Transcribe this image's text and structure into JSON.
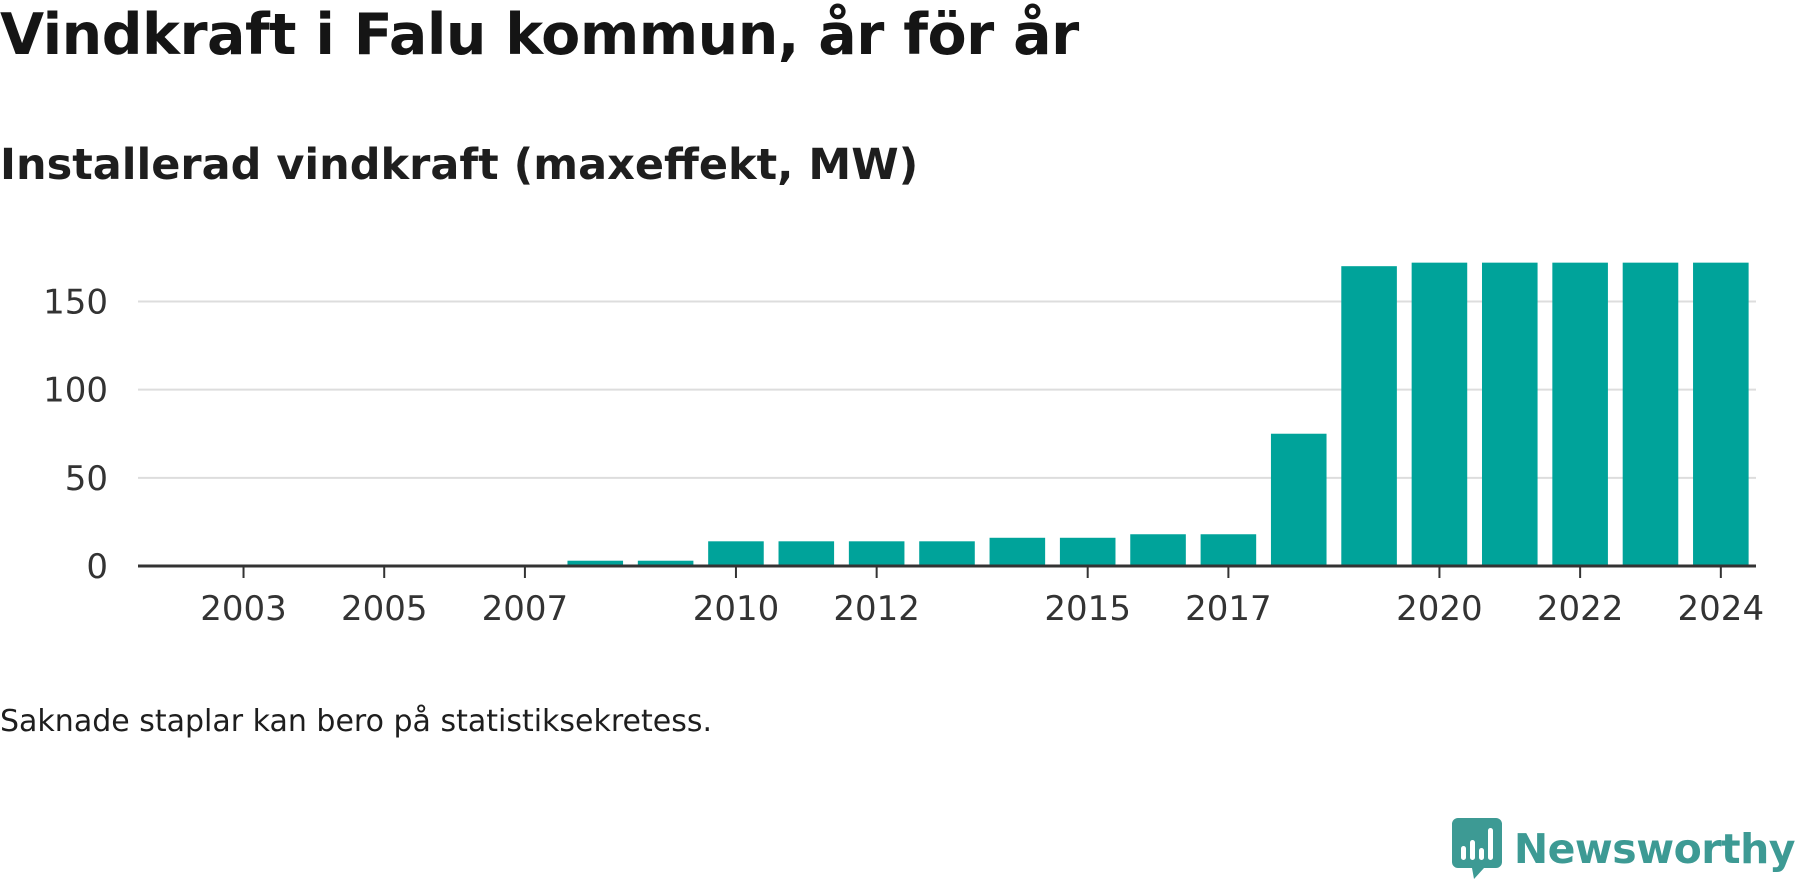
{
  "header": {
    "title": "Vindkraft i Falu kommun, år för år",
    "subtitle": "Installerad vindkraft (maxeffekt, MW)"
  },
  "footer": {
    "note": "Saknade staplar kan bero på statistiksekretess.",
    "brand": "Newsworthy",
    "brand_icon": "bar-chart-speech-bubble-icon"
  },
  "colors": {
    "bar": "#00a39a",
    "grid": "#dddddd",
    "axis": "#333333",
    "brand": "#3d9a94"
  },
  "chart_data": {
    "type": "bar",
    "title": "Installerad vindkraft (maxeffekt, MW)",
    "xlabel": "",
    "ylabel": "",
    "categories": [
      "2002",
      "2003",
      "2004",
      "2005",
      "2006",
      "2007",
      "2008",
      "2009",
      "2010",
      "2011",
      "2012",
      "2013",
      "2014",
      "2015",
      "2016",
      "2017",
      "2018",
      "2019",
      "2020",
      "2021",
      "2022",
      "2023",
      "2024"
    ],
    "values": [
      0,
      0,
      0,
      0,
      0,
      0,
      3,
      3,
      14,
      14,
      14,
      14,
      16,
      16,
      18,
      18,
      75,
      170,
      172,
      172,
      172,
      172,
      172
    ],
    "x_tick_labels": [
      "2003",
      "2005",
      "2007",
      "2010",
      "2012",
      "2015",
      "2017",
      "2020",
      "2022",
      "2024"
    ],
    "y_ticks": [
      0,
      50,
      100,
      150
    ],
    "ylim": [
      0,
      175
    ],
    "grid": true,
    "legend": false
  }
}
